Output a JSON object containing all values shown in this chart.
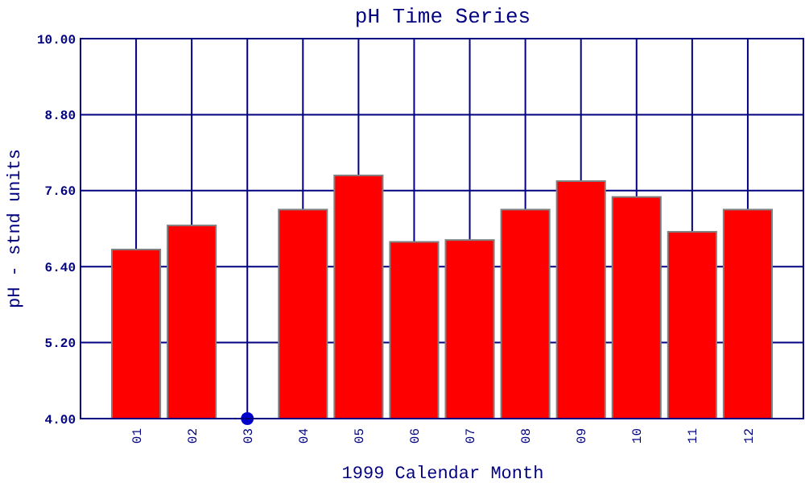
{
  "chart_data": {
    "type": "bar",
    "title": "pH Time Series",
    "xlabel": "1999 Calendar Month",
    "ylabel": "pH - stnd units",
    "categories": [
      "01",
      "02",
      "03",
      "04",
      "05",
      "06",
      "07",
      "08",
      "09",
      "10",
      "11",
      "12"
    ],
    "series": [
      {
        "color": "#ff0000",
        "values": [
          6.67,
          7.05,
          null,
          7.3,
          7.84,
          6.79,
          6.82,
          7.3,
          7.75,
          7.5,
          6.95,
          7.3
        ]
      },
      {
        "type": "scatter",
        "color": "#0000cc",
        "values": [
          null,
          null,
          4,
          null,
          null,
          null,
          null,
          null,
          null,
          null,
          null,
          null
        ]
      }
    ],
    "ylim": [
      4,
      10
    ],
    "yticks": [
      {
        "value": 4,
        "label": "4.00"
      },
      {
        "value": 5.2,
        "label": "5.20"
      },
      {
        "value": 6.4,
        "label": "6.40"
      },
      {
        "value": 7.6,
        "label": "7.60"
      },
      {
        "value": 8.8,
        "label": "8.80"
      },
      {
        "value": 10,
        "label": "10.00"
      }
    ],
    "grid": true,
    "marker": "circle"
  }
}
